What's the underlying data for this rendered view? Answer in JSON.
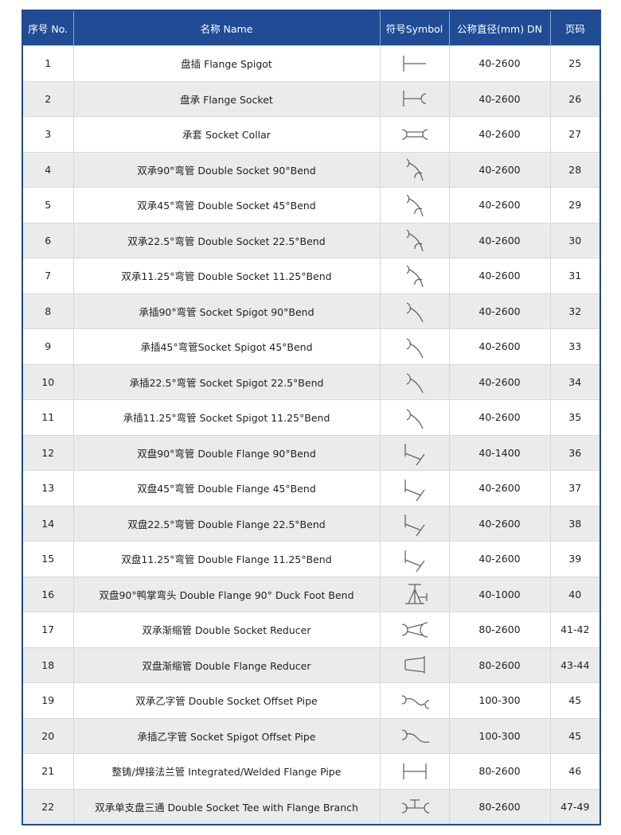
{
  "header": {
    "no": "序号 No.",
    "name": "名称 Name",
    "symbol": "符号Symbol",
    "dn": "公称直径(mm) DN",
    "page": "页码"
  },
  "rows": [
    {
      "no": "1",
      "name": "盘插 Flange Spigot",
      "symbol": "flange-spigot-icon",
      "dn": "40-2600",
      "page": "25"
    },
    {
      "no": "2",
      "name": "盘承 Flange Socket",
      "symbol": "flange-socket-icon",
      "dn": "40-2600",
      "page": "26"
    },
    {
      "no": "3",
      "name": "承套 Socket Collar",
      "symbol": "socket-collar-icon",
      "dn": "40-2600",
      "page": "27"
    },
    {
      "no": "4",
      "name": "双承90°弯管 Double Socket 90°Bend",
      "symbol": "double-socket-bend-icon",
      "dn": "40-2600",
      "page": "28"
    },
    {
      "no": "5",
      "name": "双承45°弯管 Double Socket 45°Bend",
      "symbol": "double-socket-bend-icon",
      "dn": "40-2600",
      "page": "29"
    },
    {
      "no": "6",
      "name": "双承22.5°弯管 Double Socket 22.5°Bend",
      "symbol": "double-socket-bend-icon",
      "dn": "40-2600",
      "page": "30"
    },
    {
      "no": "7",
      "name": "双承11.25°弯管 Double Socket 11.25°Bend",
      "symbol": "double-socket-bend-icon",
      "dn": "40-2600",
      "page": "31"
    },
    {
      "no": "8",
      "name": "承插90°弯管 Socket Spigot 90°Bend",
      "symbol": "socket-spigot-bend-icon",
      "dn": "40-2600",
      "page": "32"
    },
    {
      "no": "9",
      "name": "承插45°弯管Socket Spigot 45°Bend",
      "symbol": "socket-spigot-bend-icon",
      "dn": "40-2600",
      "page": "33"
    },
    {
      "no": "10",
      "name": "承插22.5°弯管 Socket Spigot 22.5°Bend",
      "symbol": "socket-spigot-bend-icon",
      "dn": "40-2600",
      "page": "34"
    },
    {
      "no": "11",
      "name": "承插11.25°弯管 Socket Spigot 11.25°Bend",
      "symbol": "socket-spigot-bend-icon",
      "dn": "40-2600",
      "page": "35"
    },
    {
      "no": "12",
      "name": "双盘90°弯管 Double Flange 90°Bend",
      "symbol": "double-flange-bend-icon",
      "dn": "40-1400",
      "page": "36"
    },
    {
      "no": "13",
      "name": "双盘45°弯管 Double Flange 45°Bend",
      "symbol": "double-flange-bend-icon",
      "dn": "40-2600",
      "page": "37"
    },
    {
      "no": "14",
      "name": "双盘22.5°弯管 Double Flange 22.5°Bend",
      "symbol": "double-flange-bend-icon",
      "dn": "40-2600",
      "page": "38"
    },
    {
      "no": "15",
      "name": "双盘11.25°弯管 Double Flange 11.25°Bend",
      "symbol": "double-flange-bend-icon",
      "dn": "40-2600",
      "page": "39"
    },
    {
      "no": "16",
      "name": "双盘90°鸭掌弯头 Double Flange 90° Duck Foot Bend",
      "symbol": "duck-foot-bend-icon",
      "dn": "40-1000",
      "page": "40"
    },
    {
      "no": "17",
      "name": "双承渐缩管 Double Socket Reducer",
      "symbol": "double-socket-reducer-icon",
      "dn": "80-2600",
      "page": "41-42"
    },
    {
      "no": "18",
      "name": "双盘渐缩管 Double Flange Reducer",
      "symbol": "double-flange-reducer-icon",
      "dn": "80-2600",
      "page": "43-44"
    },
    {
      "no": "19",
      "name": "双承乙字管 Double Socket Offset Pipe",
      "symbol": "double-socket-offset-icon",
      "dn": "100-300",
      "page": "45"
    },
    {
      "no": "20",
      "name": "承插乙字管 Socket Spigot Offset Pipe",
      "symbol": "socket-spigot-offset-icon",
      "dn": "100-300",
      "page": "45"
    },
    {
      "no": "21",
      "name": "整铸/焊接法兰管  Integrated/Welded Flange Pipe",
      "symbol": "flange-pipe-icon",
      "dn": "80-2600",
      "page": "46"
    },
    {
      "no": "22",
      "name": "双承单支盘三通 Double Socket Tee with Flange Branch",
      "symbol": "socket-tee-flange-branch-icon",
      "dn": "80-2600",
      "page": "47-49"
    }
  ],
  "colors": {
    "header_bg": "#1f4c94",
    "row_alt": "#ebebeb",
    "symbol_stroke": "#666666"
  }
}
